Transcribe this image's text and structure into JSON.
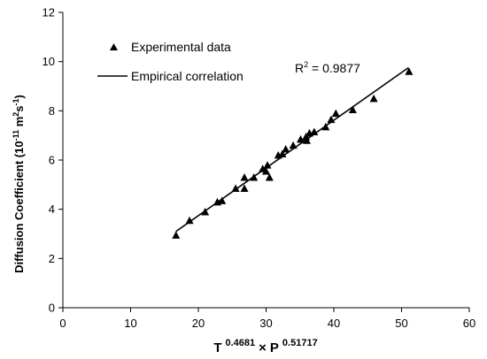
{
  "chart_data": {
    "type": "scatter",
    "xlim": [
      0,
      60
    ],
    "ylim": [
      0,
      12
    ],
    "x_ticks": [
      "0",
      "10",
      "20",
      "30",
      "40",
      "50",
      "60"
    ],
    "y_ticks": [
      "0",
      "2",
      "4",
      "6",
      "8",
      "10",
      "12"
    ],
    "grid": false,
    "legend_position": "top-left",
    "xlabel": {
      "t": "T",
      "t_exp": "0.4681",
      "times": "×",
      "p": "P",
      "p_exp": "0.51717"
    },
    "ylabel": {
      "prefix": "Diffusion Coefficient (10",
      "exp1": "-11",
      "mid": " m",
      "exp2": "2",
      "mid2": "s",
      "exp3": "-1",
      "suffix": ")"
    },
    "annotation": {
      "r2_label": "R",
      "r2_sup": "2",
      "r2_value": " = 0.9877"
    },
    "series": [
      {
        "name": "Experimental data",
        "marker": "triangle",
        "color": "#000000",
        "points": [
          [
            16.7,
            2.95
          ],
          [
            18.7,
            3.55
          ],
          [
            21.0,
            3.9
          ],
          [
            22.8,
            4.3
          ],
          [
            23.5,
            4.35
          ],
          [
            25.5,
            4.85
          ],
          [
            26.8,
            4.85
          ],
          [
            26.8,
            5.3
          ],
          [
            28.2,
            5.3
          ],
          [
            29.5,
            5.65
          ],
          [
            30.2,
            5.8
          ],
          [
            30.0,
            5.55
          ],
          [
            30.5,
            5.3
          ],
          [
            31.8,
            6.2
          ],
          [
            32.4,
            6.25
          ],
          [
            32.9,
            6.45
          ],
          [
            34.0,
            6.6
          ],
          [
            35.1,
            6.85
          ],
          [
            35.9,
            6.95
          ],
          [
            36.0,
            6.8
          ],
          [
            36.4,
            7.1
          ],
          [
            37.1,
            7.15
          ],
          [
            38.8,
            7.35
          ],
          [
            39.6,
            7.65
          ],
          [
            40.3,
            7.9
          ],
          [
            42.8,
            8.05
          ],
          [
            45.9,
            8.5
          ],
          [
            51.1,
            9.6
          ]
        ]
      },
      {
        "name": "Empirical correlation",
        "type": "line",
        "color": "#000000",
        "x": [
          16.7,
          51.0
        ],
        "y": [
          3.1,
          9.75
        ]
      }
    ]
  }
}
